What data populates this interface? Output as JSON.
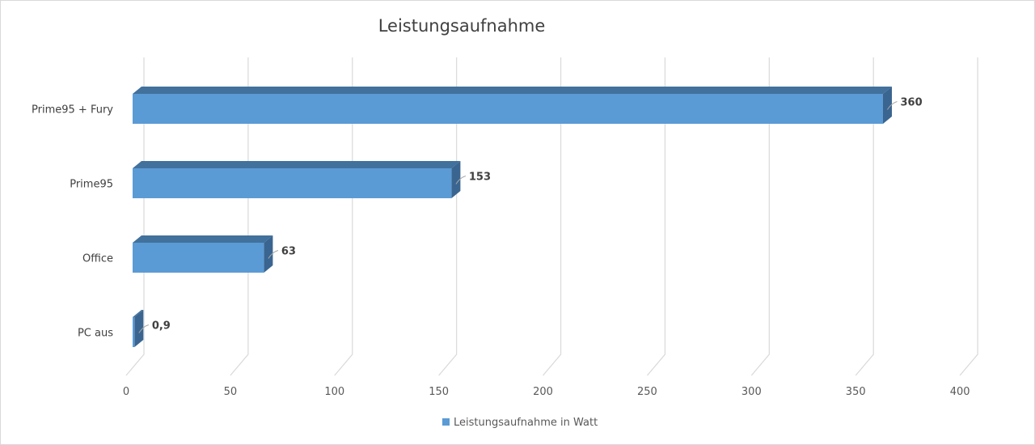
{
  "chart_data": {
    "type": "bar",
    "orientation": "horizontal",
    "title": "Leistungsaufnahme",
    "categories": [
      "Prime95 + Fury",
      "Prime95",
      "Office",
      "PC aus"
    ],
    "series": [
      {
        "name": "Leistungsaufnahme in Watt",
        "values": [
          360,
          153,
          63,
          0.9
        ],
        "value_labels": [
          "360",
          "153",
          "63",
          "0,9"
        ],
        "color": "#5b9bd5"
      }
    ],
    "xlim": [
      0,
      400
    ],
    "xticks": [
      0,
      50,
      100,
      150,
      200,
      250,
      300,
      350,
      400
    ],
    "grid": true,
    "legend": "bottom",
    "style": "3d"
  }
}
